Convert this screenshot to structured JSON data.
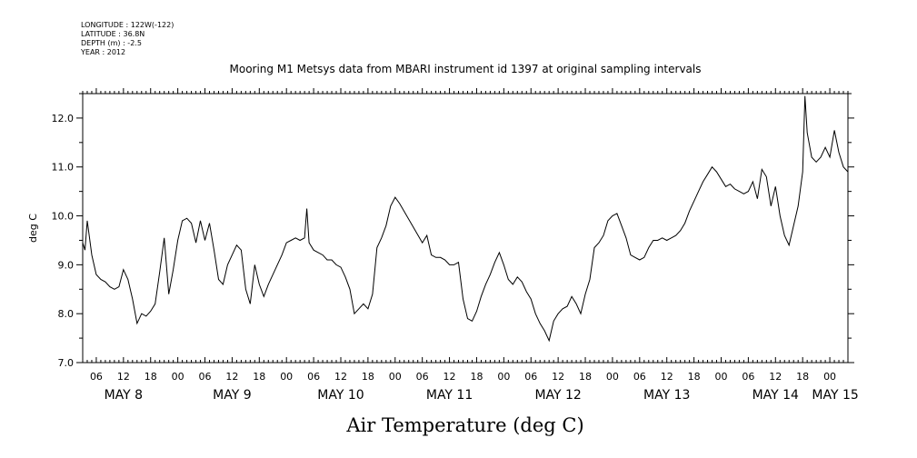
{
  "header": {
    "meta_lines": [
      "LONGITUDE : 122W(-122)",
      "LATITUDE : 36.8N",
      "DEPTH (m) : -2.5",
      "YEAR : 2012"
    ]
  },
  "chart_data": {
    "type": "line",
    "title": "Mooring M1 Metsys data from MBARI instrument id 1397 at original sampling intervals",
    "xlabel": "Air Temperature (deg C)",
    "ylabel": "deg C",
    "ylim": [
      7.0,
      12.5
    ],
    "y_ticks": [
      "7.0",
      "8.0",
      "9.0",
      "10.0",
      "11.0",
      "12.0"
    ],
    "x_start": "2012-05-08 03:00",
    "x_end": "2012-05-15 04:00",
    "hour_ticks": [
      "06",
      "12",
      "18",
      "00",
      "06",
      "12",
      "18",
      "00",
      "06",
      "12",
      "18",
      "00",
      "06",
      "12",
      "18",
      "00",
      "06",
      "12",
      "18",
      "00",
      "06",
      "12",
      "18",
      "00",
      "06",
      "12",
      "18",
      "00"
    ],
    "day_labels": [
      "MAY  8",
      "MAY  9",
      "MAY 10",
      "MAY 11",
      "MAY 12",
      "MAY 13",
      "MAY 14",
      "MAY 15"
    ],
    "grid": false,
    "series": [
      {
        "values": [
          [
            "2012-05-08 03:00",
            9.45
          ],
          [
            "2012-05-08 03:30",
            9.3
          ],
          [
            "2012-05-08 04:00",
            9.9
          ],
          [
            "2012-05-08 05:00",
            9.2
          ],
          [
            "2012-05-08 06:00",
            8.8
          ],
          [
            "2012-05-08 07:00",
            8.7
          ],
          [
            "2012-05-08 08:00",
            8.65
          ],
          [
            "2012-05-08 09:00",
            8.55
          ],
          [
            "2012-05-08 10:00",
            8.5
          ],
          [
            "2012-05-08 11:00",
            8.55
          ],
          [
            "2012-05-08 12:00",
            8.9
          ],
          [
            "2012-05-08 13:00",
            8.7
          ],
          [
            "2012-05-08 14:00",
            8.3
          ],
          [
            "2012-05-08 15:00",
            7.8
          ],
          [
            "2012-05-08 16:00",
            8.0
          ],
          [
            "2012-05-08 17:00",
            7.95
          ],
          [
            "2012-05-08 18:00",
            8.05
          ],
          [
            "2012-05-08 19:00",
            8.2
          ],
          [
            "2012-05-08 20:00",
            8.85
          ],
          [
            "2012-05-08 21:00",
            9.55
          ],
          [
            "2012-05-08 22:00",
            8.4
          ],
          [
            "2012-05-08 23:00",
            8.9
          ],
          [
            "2012-05-09 00:00",
            9.5
          ],
          [
            "2012-05-09 01:00",
            9.9
          ],
          [
            "2012-05-09 02:00",
            9.95
          ],
          [
            "2012-05-09 03:00",
            9.85
          ],
          [
            "2012-05-09 04:00",
            9.45
          ],
          [
            "2012-05-09 05:00",
            9.9
          ],
          [
            "2012-05-09 06:00",
            9.5
          ],
          [
            "2012-05-09 07:00",
            9.85
          ],
          [
            "2012-05-09 08:00",
            9.3
          ],
          [
            "2012-05-09 09:00",
            8.7
          ],
          [
            "2012-05-09 10:00",
            8.6
          ],
          [
            "2012-05-09 11:00",
            9.0
          ],
          [
            "2012-05-09 12:00",
            9.2
          ],
          [
            "2012-05-09 13:00",
            9.4
          ],
          [
            "2012-05-09 14:00",
            9.3
          ],
          [
            "2012-05-09 15:00",
            8.5
          ],
          [
            "2012-05-09 16:00",
            8.2
          ],
          [
            "2012-05-09 17:00",
            9.0
          ],
          [
            "2012-05-09 18:00",
            8.6
          ],
          [
            "2012-05-09 19:00",
            8.35
          ],
          [
            "2012-05-09 20:00",
            8.6
          ],
          [
            "2012-05-09 21:00",
            8.8
          ],
          [
            "2012-05-09 22:00",
            9.0
          ],
          [
            "2012-05-09 23:00",
            9.2
          ],
          [
            "2012-05-10 00:00",
            9.45
          ],
          [
            "2012-05-10 01:00",
            9.5
          ],
          [
            "2012-05-10 02:00",
            9.55
          ],
          [
            "2012-05-10 03:00",
            9.5
          ],
          [
            "2012-05-10 04:00",
            9.55
          ],
          [
            "2012-05-10 04:30",
            10.15
          ],
          [
            "2012-05-10 05:00",
            9.45
          ],
          [
            "2012-05-10 06:00",
            9.3
          ],
          [
            "2012-05-10 07:00",
            9.25
          ],
          [
            "2012-05-10 08:00",
            9.2
          ],
          [
            "2012-05-10 09:00",
            9.1
          ],
          [
            "2012-05-10 10:00",
            9.1
          ],
          [
            "2012-05-10 11:00",
            9.0
          ],
          [
            "2012-05-10 12:00",
            8.95
          ],
          [
            "2012-05-10 13:00",
            8.75
          ],
          [
            "2012-05-10 14:00",
            8.5
          ],
          [
            "2012-05-10 15:00",
            8.0
          ],
          [
            "2012-05-10 16:00",
            8.1
          ],
          [
            "2012-05-10 17:00",
            8.2
          ],
          [
            "2012-05-10 18:00",
            8.1
          ],
          [
            "2012-05-10 19:00",
            8.4
          ],
          [
            "2012-05-10 20:00",
            9.35
          ],
          [
            "2012-05-10 21:00",
            9.55
          ],
          [
            "2012-05-10 22:00",
            9.8
          ],
          [
            "2012-05-10 23:00",
            10.2
          ],
          [
            "2012-05-11 00:00",
            10.38
          ],
          [
            "2012-05-11 01:00",
            10.25
          ],
          [
            "2012-05-11 06:00",
            9.45
          ],
          [
            "2012-05-11 07:00",
            9.6
          ],
          [
            "2012-05-11 08:00",
            9.2
          ],
          [
            "2012-05-11 09:00",
            9.15
          ],
          [
            "2012-05-11 10:00",
            9.15
          ],
          [
            "2012-05-11 11:00",
            9.1
          ],
          [
            "2012-05-11 12:00",
            9.0
          ],
          [
            "2012-05-11 13:00",
            9.0
          ],
          [
            "2012-05-11 14:00",
            9.05
          ],
          [
            "2012-05-11 15:00",
            8.3
          ],
          [
            "2012-05-11 16:00",
            7.9
          ],
          [
            "2012-05-11 17:00",
            7.85
          ],
          [
            "2012-05-11 18:00",
            8.05
          ],
          [
            "2012-05-11 19:00",
            8.35
          ],
          [
            "2012-05-11 20:00",
            8.6
          ],
          [
            "2012-05-11 21:00",
            8.8
          ],
          [
            "2012-05-11 22:00",
            9.05
          ],
          [
            "2012-05-11 23:00",
            9.25
          ],
          [
            "2012-05-12 00:00",
            9.0
          ],
          [
            "2012-05-12 01:00",
            8.7
          ],
          [
            "2012-05-12 02:00",
            8.6
          ],
          [
            "2012-05-12 03:00",
            8.75
          ],
          [
            "2012-05-12 04:00",
            8.65
          ],
          [
            "2012-05-12 05:00",
            8.45
          ],
          [
            "2012-05-12 06:00",
            8.3
          ],
          [
            "2012-05-12 07:00",
            8.0
          ],
          [
            "2012-05-12 08:00",
            7.8
          ],
          [
            "2012-05-12 09:00",
            7.65
          ],
          [
            "2012-05-12 10:00",
            7.45
          ],
          [
            "2012-05-12 11:00",
            7.85
          ],
          [
            "2012-05-12 12:00",
            8.0
          ],
          [
            "2012-05-12 13:00",
            8.1
          ],
          [
            "2012-05-12 14:00",
            8.15
          ],
          [
            "2012-05-12 15:00",
            8.35
          ],
          [
            "2012-05-12 16:00",
            8.2
          ],
          [
            "2012-05-12 17:00",
            8.0
          ],
          [
            "2012-05-12 18:00",
            8.4
          ],
          [
            "2012-05-12 19:00",
            8.7
          ],
          [
            "2012-05-12 20:00",
            9.35
          ],
          [
            "2012-05-12 21:00",
            9.45
          ],
          [
            "2012-05-12 22:00",
            9.6
          ],
          [
            "2012-05-12 23:00",
            9.9
          ],
          [
            "2012-05-13 00:00",
            10.0
          ],
          [
            "2012-05-13 01:00",
            10.05
          ],
          [
            "2012-05-13 02:00",
            9.8
          ],
          [
            "2012-05-13 03:00",
            9.55
          ],
          [
            "2012-05-13 04:00",
            9.2
          ],
          [
            "2012-05-13 05:00",
            9.15
          ],
          [
            "2012-05-13 06:00",
            9.1
          ],
          [
            "2012-05-13 07:00",
            9.15
          ],
          [
            "2012-05-13 08:00",
            9.35
          ],
          [
            "2012-05-13 09:00",
            9.5
          ],
          [
            "2012-05-13 10:00",
            9.5
          ],
          [
            "2012-05-13 11:00",
            9.55
          ],
          [
            "2012-05-13 12:00",
            9.5
          ],
          [
            "2012-05-13 13:00",
            9.55
          ],
          [
            "2012-05-13 14:00",
            9.6
          ],
          [
            "2012-05-13 15:00",
            9.7
          ],
          [
            "2012-05-13 16:00",
            9.85
          ],
          [
            "2012-05-13 17:00",
            10.1
          ],
          [
            "2012-05-13 18:00",
            10.3
          ],
          [
            "2012-05-13 19:00",
            10.5
          ],
          [
            "2012-05-13 20:00",
            10.7
          ],
          [
            "2012-05-13 21:00",
            10.85
          ],
          [
            "2012-05-13 22:00",
            11.0
          ],
          [
            "2012-05-13 23:00",
            10.9
          ],
          [
            "2012-05-14 00:00",
            10.75
          ],
          [
            "2012-05-14 01:00",
            10.6
          ],
          [
            "2012-05-14 02:00",
            10.65
          ],
          [
            "2012-05-14 03:00",
            10.55
          ],
          [
            "2012-05-14 04:00",
            10.5
          ],
          [
            "2012-05-14 05:00",
            10.45
          ],
          [
            "2012-05-14 06:00",
            10.5
          ],
          [
            "2012-05-14 07:00",
            10.7
          ],
          [
            "2012-05-14 08:00",
            10.35
          ],
          [
            "2012-05-14 09:00",
            10.95
          ],
          [
            "2012-05-14 10:00",
            10.8
          ],
          [
            "2012-05-14 11:00",
            10.2
          ],
          [
            "2012-05-14 12:00",
            10.6
          ],
          [
            "2012-05-14 13:00",
            10.0
          ],
          [
            "2012-05-14 14:00",
            9.6
          ],
          [
            "2012-05-14 15:00",
            9.4
          ],
          [
            "2012-05-14 16:00",
            9.8
          ],
          [
            "2012-05-14 17:00",
            10.2
          ],
          [
            "2012-05-14 18:00",
            10.9
          ],
          [
            "2012-05-14 18:30",
            12.45
          ],
          [
            "2012-05-14 19:00",
            11.7
          ],
          [
            "2012-05-14 20:00",
            11.2
          ],
          [
            "2012-05-14 21:00",
            11.1
          ],
          [
            "2012-05-14 22:00",
            11.2
          ],
          [
            "2012-05-14 23:00",
            11.4
          ],
          [
            "2012-05-15 00:00",
            11.2
          ],
          [
            "2012-05-15 01:00",
            11.75
          ],
          [
            "2012-05-15 02:00",
            11.3
          ],
          [
            "2012-05-15 03:00",
            11.0
          ],
          [
            "2012-05-15 04:00",
            10.9
          ]
        ]
      }
    ]
  }
}
